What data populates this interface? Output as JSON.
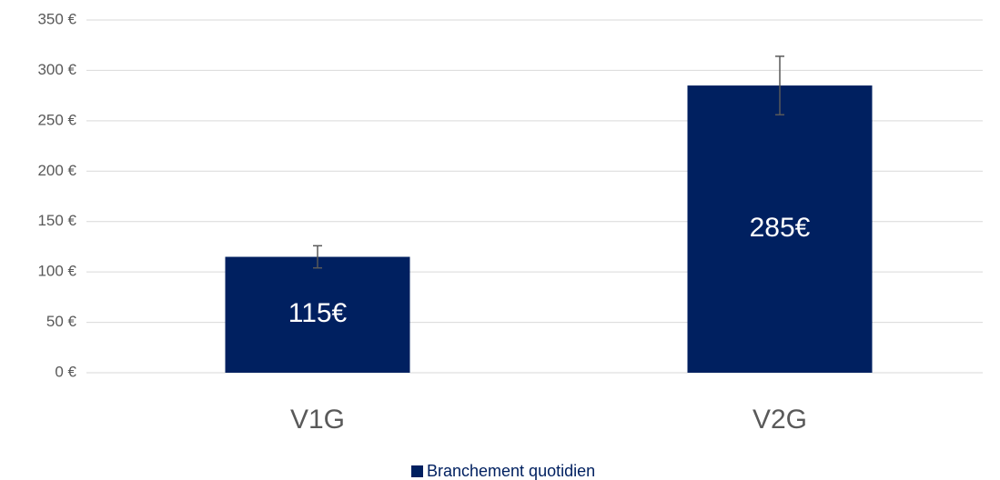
{
  "chart_data": {
    "type": "bar",
    "categories": [
      "V1G",
      "V2G"
    ],
    "series": [
      {
        "name": "Branchement quotidien",
        "color": "#002060",
        "values": [
          115,
          285
        ],
        "value_labels": [
          "115€",
          "285€"
        ],
        "errors": [
          11,
          29
        ]
      }
    ],
    "ylim": [
      0,
      350
    ],
    "yticks": [
      {
        "value": 0,
        "label": "0 €"
      },
      {
        "value": 50,
        "label": "50 €"
      },
      {
        "value": 100,
        "label": "100 €"
      },
      {
        "value": 150,
        "label": "150 €"
      },
      {
        "value": 200,
        "label": "200 €"
      },
      {
        "value": 250,
        "label": "250 €"
      },
      {
        "value": 300,
        "label": "300 €"
      },
      {
        "value": 350,
        "label": "350 €"
      }
    ],
    "grid": true,
    "legend": "bottom"
  }
}
